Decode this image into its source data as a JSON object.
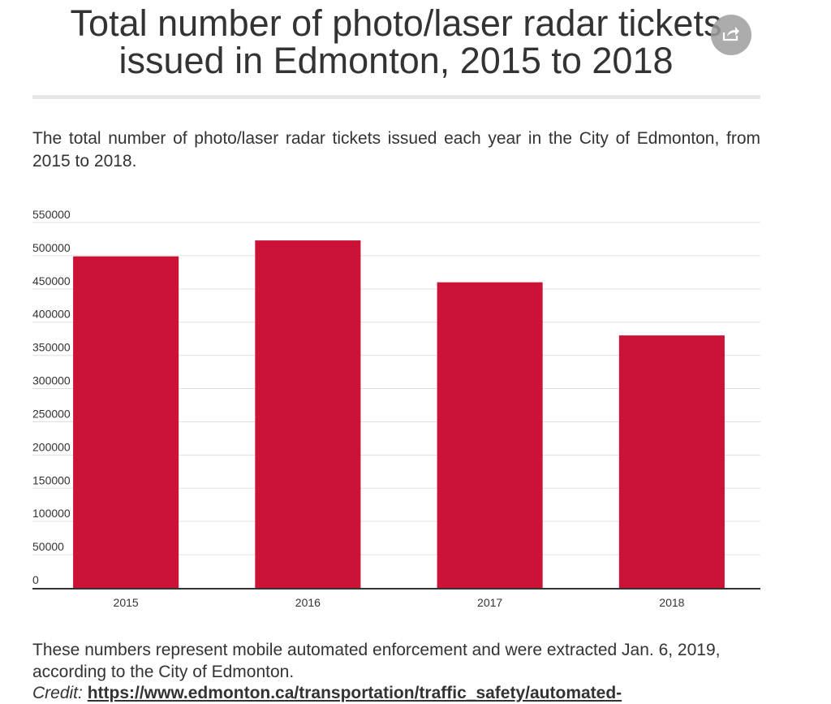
{
  "header": {
    "title": "Total number of photo/laser radar tickets issued in Edmonton, 2015 to 2018",
    "share_icon": "share-icon"
  },
  "subtitle": "The total number of photo/laser radar tickets issued each year in the City of Edmonton, from 2015 to 2018.",
  "footer": {
    "note": "These numbers represent mobile automated enforcement and were extracted Jan. 6, 2019, according to the City of Edmonton.",
    "credit_label": "Credit:",
    "credit_link": "https://www.edmonton.ca/transportation/traffic_safety/automated-"
  },
  "colors": {
    "bar": "#cc1236",
    "grid": "#e0e0e0",
    "axis": "#333333",
    "text": "#333333"
  },
  "chart_data": {
    "type": "bar",
    "categories": [
      "2015",
      "2016",
      "2017",
      "2018"
    ],
    "values": [
      499000,
      523000,
      460000,
      380000
    ],
    "ylim": [
      0,
      550000
    ],
    "yticks": [
      "0",
      "50000",
      "100000",
      "150000",
      "200000",
      "250000",
      "300000",
      "350000",
      "400000",
      "450000",
      "500000",
      "550000"
    ],
    "grid": true,
    "legend": "none",
    "xlabel": "",
    "ylabel": ""
  }
}
